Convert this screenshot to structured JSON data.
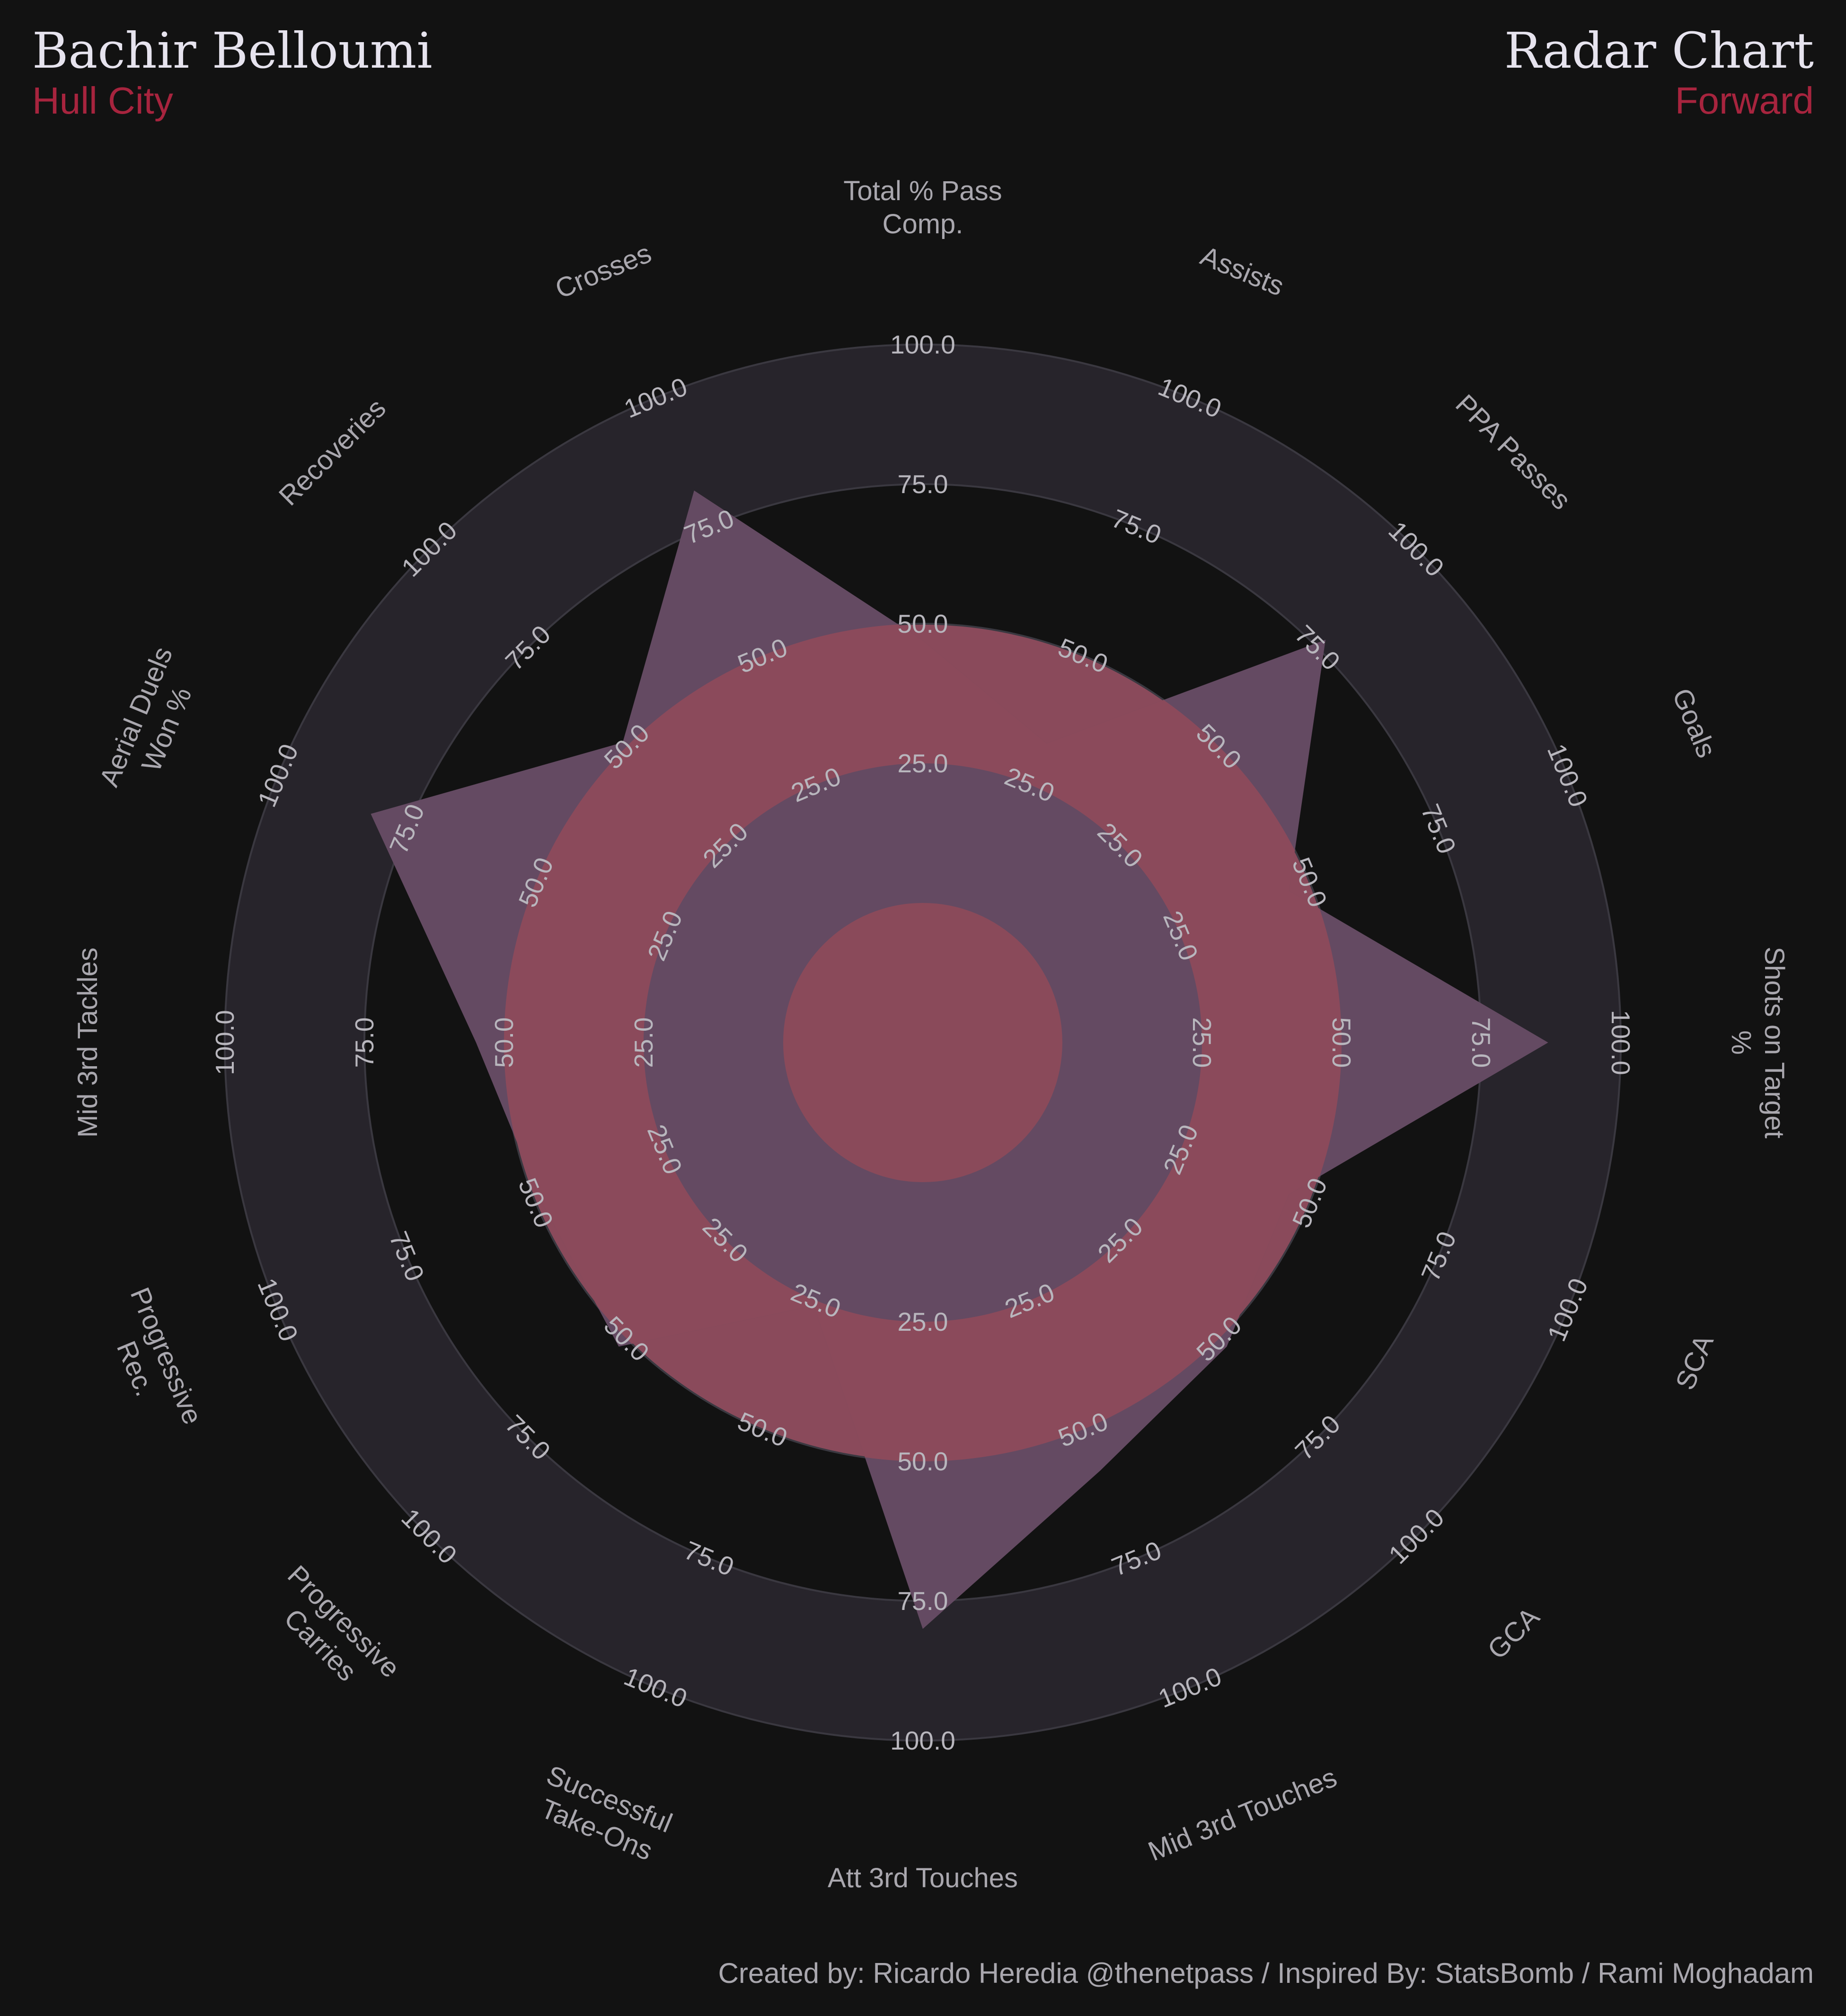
{
  "header": {
    "player_name": "Bachir Belloumi",
    "team": "Hull City",
    "chart_title": "Radar Chart",
    "position": "Forward"
  },
  "footer": {
    "credit": "Created by: Ricardo Heredia @thenetpass / Inspired By: StatsBomb / Rami Moghadam"
  },
  "colors": {
    "background": "#121212",
    "ring_dark": "#27242b",
    "ring_red": "#8a4a5b",
    "ring_light": "#5f465f",
    "poly_red": "#8b4a5b",
    "poly_purple": "#644a62",
    "center": "#8a4a5a",
    "accent": "#a7243e"
  },
  "chart_data": {
    "type": "radar",
    "params": [
      "Total % Pass\nComp.",
      "Assists",
      "PPA Passes",
      "Goals",
      "Shots on Target\n%",
      "SCA",
      "GCA",
      "Mid 3rd Touches",
      "Att 3rd Touches",
      "Successful\nTake-Ons",
      "Progressive\nCarries",
      "Progressive\nRec.",
      "Mid 3rd Tackles",
      "Aerial Duels\nWon %",
      "Recoveries",
      "Crosses"
    ],
    "values": [
      47,
      33,
      77,
      46,
      87,
      46,
      52,
      58,
      80,
      26,
      52,
      49,
      55,
      82,
      51,
      82
    ],
    "ticks": [
      "25.0",
      "50.0",
      "75.0",
      "100.0"
    ],
    "range": [
      0,
      100
    ]
  }
}
